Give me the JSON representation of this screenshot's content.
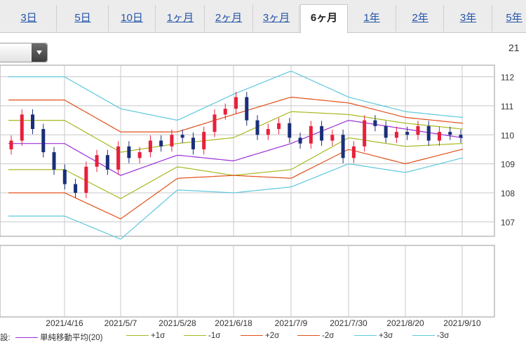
{
  "tabs": [
    {
      "label": "3日",
      "active": false
    },
    {
      "label": "5日",
      "active": false
    },
    {
      "label": "10日",
      "active": false
    },
    {
      "label": "1ヶ月",
      "active": false
    },
    {
      "label": "2ヶ月",
      "active": false
    },
    {
      "label": "3ヶ月",
      "active": false
    },
    {
      "label": "6ヶ月",
      "active": true
    },
    {
      "label": "1年",
      "active": false
    },
    {
      "label": "2年",
      "active": false
    },
    {
      "label": "3年",
      "active": false
    },
    {
      "label": "5年",
      "active": false
    }
  ],
  "top_right_value": "21",
  "legend": {
    "prefix": "設:",
    "items": [
      {
        "label": "単純移動平均(20)",
        "color": "#9b30d9"
      },
      {
        "label": "+1σ",
        "color": "#a8b820"
      },
      {
        "label": "-1σ",
        "color": "#a8b820"
      },
      {
        "label": "+2σ",
        "color": "#e0501a"
      },
      {
        "label": "-2σ",
        "color": "#e0501a"
      },
      {
        "label": "+3σ",
        "color": "#5cc8dc"
      },
      {
        "label": "-3σ",
        "color": "#5cc8dc"
      }
    ]
  },
  "colors": {
    "up": "#e8203a",
    "down": "#1a2f7a",
    "grid": "#c8c8c8"
  },
  "chart_data": {
    "type": "line",
    "overlay": "candlestick",
    "x": [
      "2021/4/16",
      "2021/5/7",
      "2021/5/28",
      "2021/6/18",
      "2021/7/9",
      "2021/7/30",
      "2021/8/20",
      "2021/9/10"
    ],
    "ylim": [
      106.5,
      112.4
    ],
    "yticks": [
      107,
      108,
      109,
      110,
      111,
      112
    ],
    "grid": true,
    "legend_position": "bottom",
    "series": [
      {
        "name": "単純移動平均(20)",
        "values": [
          109.7,
          108.6,
          109.3,
          109.1,
          109.7,
          110.5,
          110.2,
          109.9
        ]
      },
      {
        "name": "+1σ",
        "values": [
          110.5,
          109.4,
          109.7,
          109.9,
          110.8,
          110.7,
          110.4,
          110.2
        ]
      },
      {
        "name": "-1σ",
        "values": [
          108.8,
          107.8,
          108.9,
          108.6,
          108.8,
          109.9,
          109.6,
          109.7
        ]
      },
      {
        "name": "+2σ",
        "values": [
          111.2,
          110.1,
          110.1,
          110.7,
          111.3,
          111.1,
          110.6,
          110.4
        ]
      },
      {
        "name": "-2σ",
        "values": [
          108.0,
          107.1,
          108.5,
          108.6,
          108.5,
          109.5,
          109.0,
          109.5
        ]
      },
      {
        "name": "+3σ",
        "values": [
          112.0,
          110.9,
          110.5,
          111.4,
          112.2,
          111.3,
          110.8,
          110.6
        ]
      },
      {
        "name": "-3σ",
        "values": [
          107.2,
          106.4,
          108.1,
          108.0,
          108.2,
          109.0,
          108.7,
          109.2
        ]
      }
    ],
    "candles_close": [
      109.8,
      110.7,
      110.2,
      109.4,
      108.8,
      108.3,
      108.0,
      108.9,
      109.3,
      108.8,
      109.6,
      109.2,
      109.4,
      109.8,
      109.6,
      110.0,
      109.9,
      109.5,
      110.1,
      110.7,
      110.9,
      111.3,
      110.5,
      110.0,
      110.2,
      110.4,
      109.9,
      109.7,
      110.3,
      109.8,
      110.0,
      109.2,
      109.6,
      110.5,
      110.3,
      109.9,
      110.1,
      110.0,
      110.3,
      109.8,
      110.1,
      110.0,
      109.9
    ]
  }
}
